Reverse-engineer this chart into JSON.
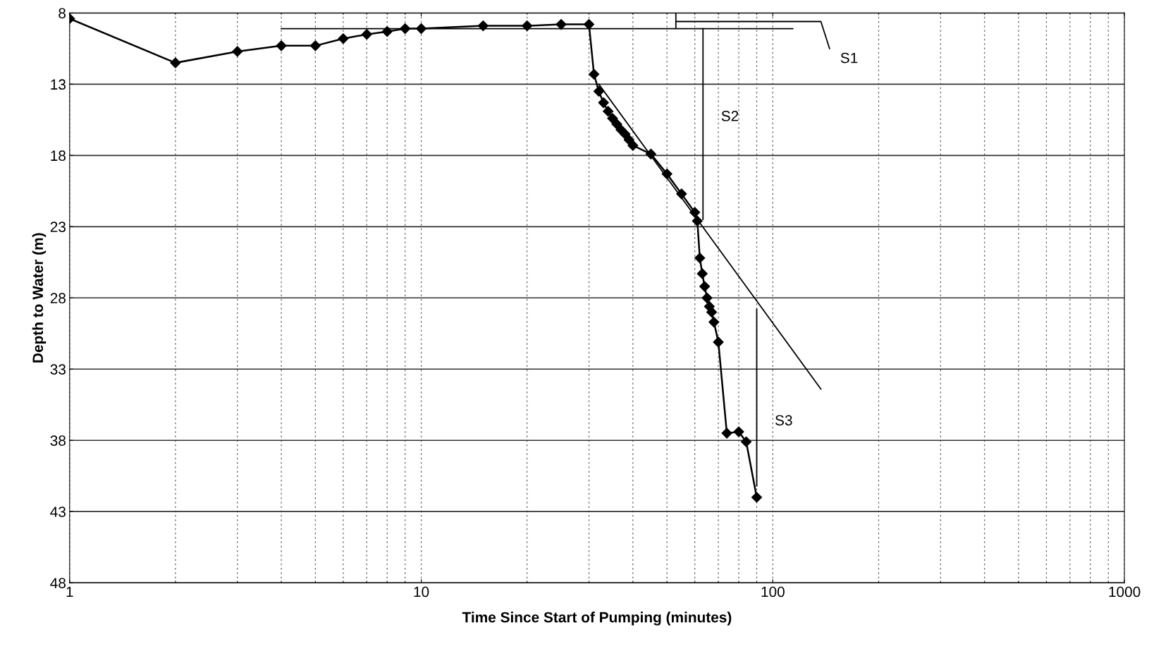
{
  "chart_data": {
    "type": "line",
    "xlabel": "Time Since Start of Pumping (minutes)",
    "ylabel": "Depth to Water (m)",
    "log": "x",
    "grid": true,
    "marker": "diamond",
    "line_style": "solid",
    "xlim": [
      1,
      1000
    ],
    "xticks": [
      1,
      10,
      100,
      1000
    ],
    "ylim": [
      48,
      8
    ],
    "yticks": [
      8,
      13,
      18,
      23,
      28,
      33,
      38,
      43,
      48
    ],
    "series": [
      {
        "color": "#000000",
        "x": [
          1,
          2,
          3,
          4,
          5,
          6,
          7,
          8,
          9,
          10,
          15,
          20,
          25,
          30,
          31,
          32,
          33,
          34,
          35,
          36,
          37,
          38,
          39,
          40,
          45,
          50,
          55,
          60,
          61,
          62,
          63,
          64,
          65,
          66,
          67,
          68,
          70,
          74,
          80,
          84,
          90
        ],
        "values": [
          8.4,
          11.5,
          10.7,
          10.3,
          10.3,
          9.8,
          9.5,
          9.3,
          9.1,
          9.1,
          8.9,
          8.9,
          8.8,
          8.8,
          12.3,
          13.5,
          14.3,
          14.9,
          15.4,
          15.8,
          16.2,
          16.5,
          16.9,
          17.3,
          17.9,
          19.3,
          20.7,
          22.0,
          22.6,
          25.2,
          26.3,
          27.2,
          28.0,
          28.6,
          29.0,
          29.7,
          31.1,
          37.5,
          37.4,
          38.1,
          42.0
        ]
      },
      {
        "type": "line",
        "marker": "none",
        "color": "#000000",
        "x": [
          4,
          114
        ],
        "values": [
          9.1,
          9.1
        ]
      },
      {
        "type": "line",
        "marker": "none",
        "color": "#000000",
        "x": [
          53,
          53,
          53,
          137,
          145
        ],
        "values": [
          8,
          9.05,
          8.6,
          8.6,
          10.5
        ]
      },
      {
        "type": "line",
        "marker": "none",
        "color": "#000000",
        "x": [
          32,
          137
        ],
        "values": [
          13.0,
          34.4
        ]
      },
      {
        "type": "line",
        "marker": "none",
        "color": "#000000",
        "x": [
          63.3,
          63.3
        ],
        "values": [
          9.1,
          22.5
        ]
      },
      {
        "type": "line",
        "marker": "none",
        "color": "#000000",
        "x": [
          90,
          90
        ],
        "values": [
          28.8,
          41.2
        ]
      }
    ],
    "annotations": [
      "S1",
      "S2",
      "S3"
    ]
  }
}
